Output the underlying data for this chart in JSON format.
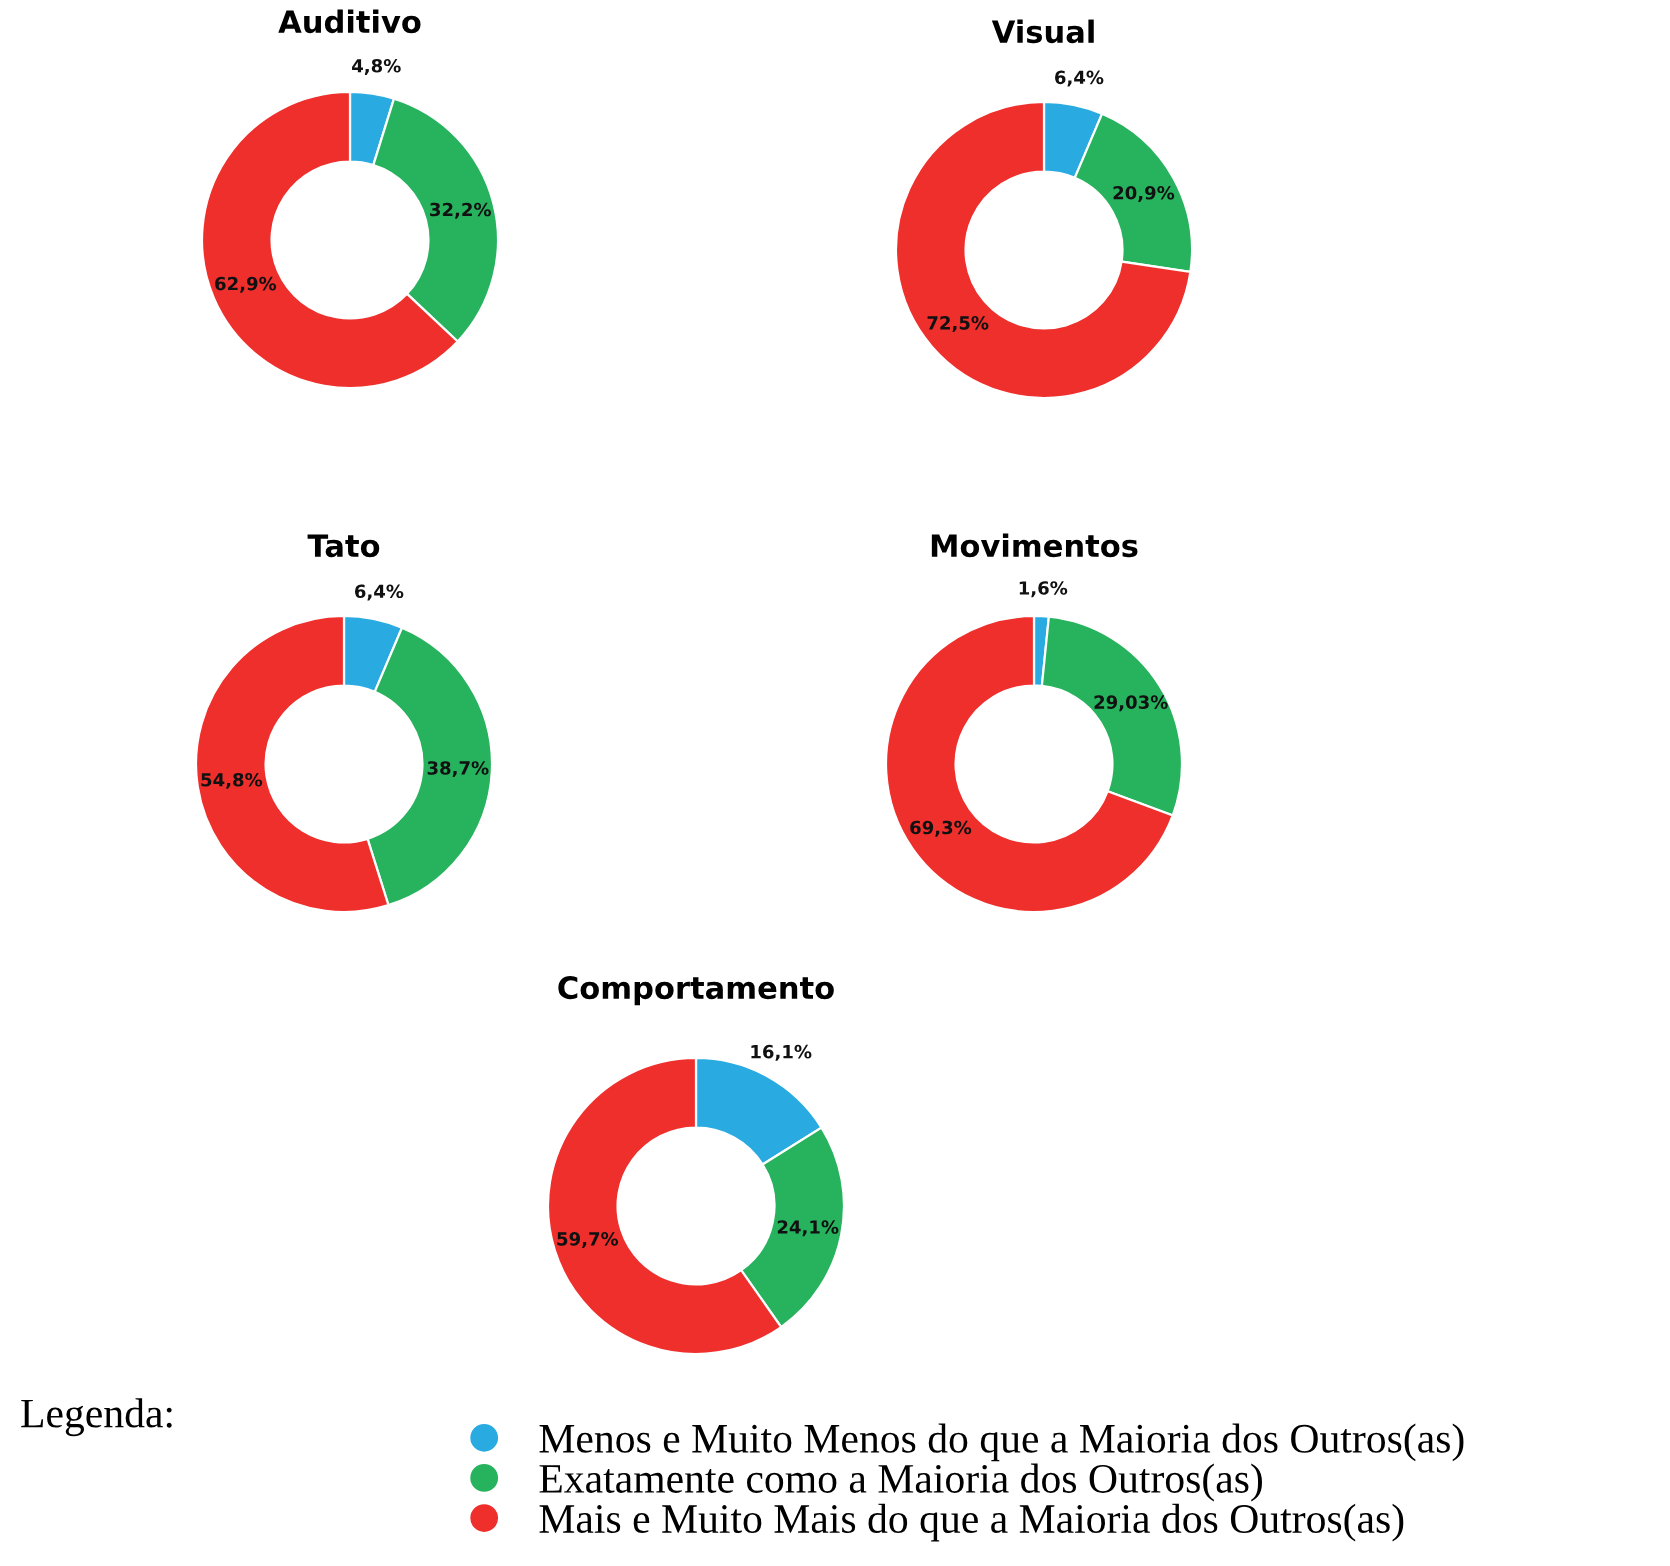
{
  "chart_data": [
    {
      "type": "donut",
      "title": "Auditivo",
      "categories": [
        "Menos e Muito Menos do que a Maioria dos Outros(as)",
        "Exatamente como a Maioria dos Outros(as)",
        "Mais e Muito Mais do que a Maioria dos Outros(as)"
      ],
      "values": [
        4.8,
        32.2,
        62.9
      ],
      "value_labels": [
        "4,8%",
        "32,2%",
        "62,9%"
      ],
      "colors": [
        "#29abe2",
        "#27b35e",
        "#ee2f2c"
      ],
      "legend": "bottom",
      "legend_title": "Legenda:"
    },
    {
      "type": "donut",
      "title": "Visual",
      "categories": [
        null,
        null,
        null
      ],
      "values": [
        6.4,
        20.9,
        72.5
      ],
      "value_labels": [
        "6,4%",
        "20,9%",
        "72,5%"
      ],
      "colors": [
        "#29abe2",
        "#27b35e",
        "#ee2f2c"
      ]
    },
    {
      "type": "donut",
      "title": "Tato",
      "categories": [
        null,
        null,
        null
      ],
      "values": [
        6.4,
        38.7,
        54.8
      ],
      "value_labels": [
        "6,4%",
        "38,7%",
        "54,8%"
      ],
      "colors": [
        "#29abe2",
        "#27b35e",
        "#ee2f2c"
      ]
    },
    {
      "type": "donut",
      "title": "Movimentos",
      "categories": [
        null,
        null,
        null
      ],
      "values": [
        1.6,
        29.03,
        69.3
      ],
      "value_labels": [
        "1,6%",
        "29,03%",
        "69,3%"
      ],
      "colors": [
        "#29abe2",
        "#27b35e",
        "#ee2f2c"
      ]
    },
    {
      "type": "donut",
      "title": "Comportamento",
      "categories": [
        null,
        null,
        null
      ],
      "values": [
        16.1,
        24.1,
        59.7
      ],
      "value_labels": [
        "16,1%",
        "24,1%",
        "59,7%"
      ],
      "colors": [
        "#29abe2",
        "#27b35e",
        "#ee2f2c"
      ]
    }
  ]
}
